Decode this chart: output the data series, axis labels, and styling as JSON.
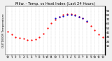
{
  "title": "Milw. - Temp. vs Heat Index (Last 24 Hours)",
  "ylabel_left": "OUTDOOR Temperature",
  "x_labels": [
    "12",
    "1",
    "2",
    "3",
    "4",
    "5",
    "6",
    "7",
    "8",
    "9",
    "10",
    "11",
    "12",
    "1",
    "2",
    "3",
    "4",
    "5",
    "6",
    "7",
    "8",
    "9",
    "10",
    "11",
    "12"
  ],
  "hours": 25,
  "temp_values": [
    43,
    36,
    30,
    28,
    26,
    24,
    24,
    25,
    30,
    38,
    50,
    62,
    70,
    76,
    80,
    82,
    82,
    80,
    76,
    72,
    65,
    55,
    45,
    36,
    30
  ],
  "heat_index_values": [
    null,
    null,
    null,
    null,
    null,
    null,
    null,
    null,
    null,
    null,
    null,
    null,
    72,
    76,
    78,
    80,
    80,
    79,
    76,
    73,
    67,
    null,
    null,
    null,
    null
  ],
  "temp_color": "#ff0000",
  "heat_color": "#0000cc",
  "bg_color": "#f0f0f0",
  "plot_bg_color": "#ffffff",
  "ylim": [
    -10,
    100
  ],
  "yticks": [
    10,
    20,
    30,
    40,
    50,
    60,
    70,
    80,
    90
  ],
  "grid_color": "#aaaaaa",
  "title_fontsize": 3.8,
  "tick_fontsize": 3.0,
  "ylabel_fontsize": 3.0,
  "marker_size": 1.2,
  "border_color": "#000000"
}
